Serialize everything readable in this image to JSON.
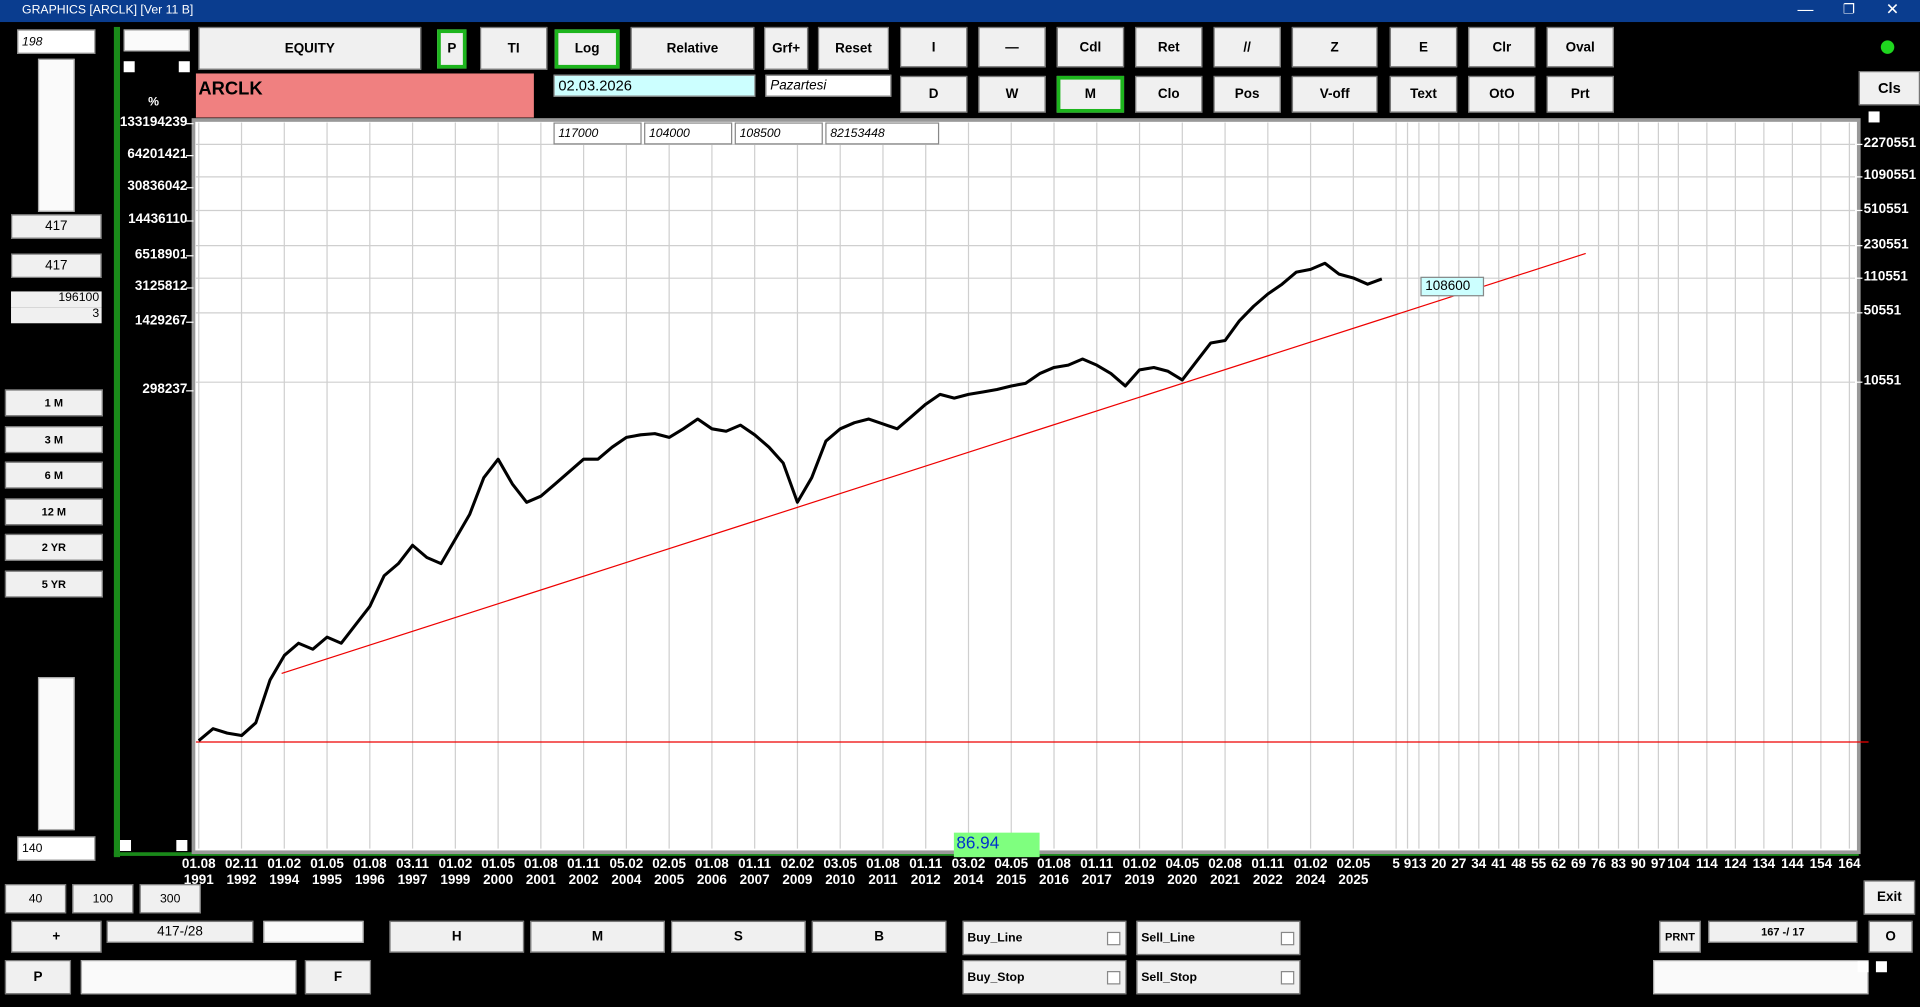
{
  "window": {
    "title": "GRAPHICS [ARCLK] [Ver 11 B]"
  },
  "left_panel": {
    "top_input": "198",
    "field_1": "417",
    "field_2": "417",
    "field_3": [
      "196100",
      "3"
    ],
    "periods": [
      "1 M",
      "3 M",
      "6 M",
      "12 M",
      "2 YR",
      "5 YR"
    ],
    "bottom_input": "140"
  },
  "toolbar": {
    "row1": [
      "EQUITY",
      "P",
      "TI",
      "Log",
      "Relative",
      "Grf+",
      "Reset",
      "I",
      "—",
      "Cdl",
      "Ret",
      "//",
      "Z",
      "E",
      "Clr",
      "Oval"
    ],
    "row2": [
      "D",
      "W",
      "M",
      "Clo",
      "Pos",
      "V-off",
      "Text",
      "OtO",
      "Prt"
    ],
    "symbol": "ARCLK",
    "date": "02.03.2026",
    "day": "Pazartesi",
    "close": "Cls",
    "fields": [
      "117000",
      "104000",
      "108500",
      "82153448"
    ]
  },
  "bottom": {
    "zoom": [
      "40",
      "100",
      "300"
    ],
    "plus": "+",
    "position": "417-/28",
    "p": "P",
    "f": "F",
    "hmsb": [
      "H",
      "M",
      "S",
      "B"
    ],
    "checks": [
      "Buy_Line",
      "Sell_Line",
      "Buy_Stop",
      "Sell_Stop"
    ],
    "prnt": "PRNT",
    "counter": "167 -/ 17",
    "exit": "Exit",
    "o": "O"
  },
  "chart_data": {
    "type": "line",
    "log_scale": true,
    "grid": true,
    "y2_label": "%",
    "last_price": "108600",
    "indicator": "86.94",
    "x": [
      0,
      5,
      10,
      15,
      20,
      25,
      30,
      35,
      40,
      45,
      50,
      55,
      60,
      65,
      70,
      75,
      80,
      85,
      90,
      95,
      100,
      105,
      110,
      115,
      120,
      125,
      130,
      135,
      140,
      145,
      150,
      155,
      160,
      165,
      170,
      175,
      180,
      185,
      190,
      195,
      200,
      205,
      210,
      215,
      220,
      225,
      230,
      235,
      240,
      245,
      250,
      255,
      260,
      265,
      270,
      275,
      280,
      285,
      290,
      295,
      300,
      305,
      310,
      315,
      320,
      325,
      330,
      335,
      340,
      345,
      350,
      355,
      360,
      365,
      370,
      375,
      380,
      385,
      390,
      395,
      400,
      405,
      410,
      415
    ],
    "series": [
      {
        "color": "#000000",
        "values": [
          3.2,
          4.2,
          3.8,
          3.6,
          4.8,
          12.6,
          22,
          29,
          25.3,
          33.3,
          29,
          44,
          66.5,
          133,
          175,
          265,
          201,
          175,
          305,
          531,
          1220,
          1850,
          1060,
          700,
          804,
          1060,
          1400,
          1850,
          1850,
          2430,
          3030,
          3210,
          3300,
          3030,
          3680,
          4590,
          3680,
          3480,
          4000,
          3210,
          2430,
          1700,
          700,
          1220,
          2790,
          3680,
          4230,
          4590,
          4110,
          3680,
          4850,
          6410,
          8000,
          7360,
          8000,
          8450,
          8930,
          9700,
          10260,
          12800,
          14700,
          15500,
          17800,
          15500,
          12800,
          9700,
          13900,
          14700,
          13500,
          11100,
          16900,
          25600,
          27000,
          42100,
          58600,
          77300,
          96600,
          127000,
          135000,
          155000,
          121000,
          111000,
          96600,
          108600
        ]
      }
    ],
    "xlim": [
      -1,
      581
    ],
    "ylim": [
      0.28,
      3730000
    ],
    "yticks": [
      2270551,
      1090551,
      510551,
      230551,
      110551,
      50551,
      10551
    ],
    "y2lim": [
      8.6,
      137000000
    ],
    "y2ticks": [
      133194239,
      64201421,
      30836042,
      14436110,
      6518901,
      3125812,
      1429267,
      298237
    ],
    "xticks": [
      {
        "value": 0,
        "label": "01.08 1991"
      },
      {
        "value": 15,
        "label": "02.11 1992"
      },
      {
        "value": 30,
        "label": "01.02 1994"
      },
      {
        "value": 45,
        "label": "01.05 1995"
      },
      {
        "value": 60,
        "label": "01.08 1996"
      },
      {
        "value": 75,
        "label": "03.11 1997"
      },
      {
        "value": 90,
        "label": "01.02 1999"
      },
      {
        "value": 105,
        "label": "01.05 2000"
      },
      {
        "value": 120,
        "label": "01.08 2001"
      },
      {
        "value": 135,
        "label": "01.11 2002"
      },
      {
        "value": 150,
        "label": "05.02 2004"
      },
      {
        "value": 165,
        "label": "02.05 2005"
      },
      {
        "value": 180,
        "label": "01.08 2006"
      },
      {
        "value": 195,
        "label": "01.11 2007"
      },
      {
        "value": 210,
        "label": "02.02 2009"
      },
      {
        "value": 225,
        "label": "03.05 2010"
      },
      {
        "value": 240,
        "label": "01.08 2011"
      },
      {
        "value": 255,
        "label": "01.11 2012"
      },
      {
        "value": 270,
        "label": "03.02 2014"
      },
      {
        "value": 285,
        "label": "04.05 2015"
      },
      {
        "value": 300,
        "label": "01.08 2016"
      },
      {
        "value": 315,
        "label": "01.11 2017"
      },
      {
        "value": 330,
        "label": "01.02 2019"
      },
      {
        "value": 345,
        "label": "04.05 2020"
      },
      {
        "value": 360,
        "label": "02.08 2021"
      },
      {
        "value": 375,
        "label": "01.11 2022"
      },
      {
        "value": 390,
        "label": "01.02 2024"
      },
      {
        "value": 405,
        "label": "02.05 2025"
      },
      {
        "value": 420,
        "label": "5"
      },
      {
        "value": 424,
        "label": "9"
      },
      {
        "value": 428,
        "label": "13"
      },
      {
        "value": 435,
        "label": "20"
      },
      {
        "value": 442,
        "label": "27"
      },
      {
        "value": 449,
        "label": "34"
      },
      {
        "value": 456,
        "label": "41"
      },
      {
        "value": 463,
        "label": "48"
      },
      {
        "value": 470,
        "label": "55"
      },
      {
        "value": 477,
        "label": "62"
      },
      {
        "value": 484,
        "label": "69"
      },
      {
        "value": 491,
        "label": "76"
      },
      {
        "value": 498,
        "label": "83"
      },
      {
        "value": 505,
        "label": "90"
      },
      {
        "value": 512,
        "label": "97"
      },
      {
        "value": 519,
        "label": "104"
      },
      {
        "value": 529,
        "label": "114"
      },
      {
        "value": 539,
        "label": "124"
      },
      {
        "value": 549,
        "label": "134"
      },
      {
        "value": 559,
        "label": "144"
      },
      {
        "value": 569,
        "label": "154"
      },
      {
        "value": 579,
        "label": "164"
      }
    ]
  }
}
